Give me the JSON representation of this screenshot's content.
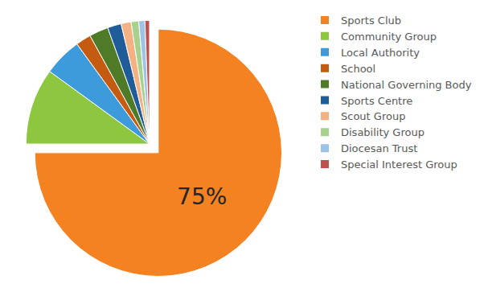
{
  "chart_data": {
    "type": "pie",
    "categories": [
      "Sports Club",
      "Community Group",
      "Local Authority",
      "School",
      "National Governing Body",
      "Sports Centre",
      "Scout Group",
      "Disability Group",
      "Diocesan Trust",
      "Special Interest Group"
    ],
    "values": [
      75,
      10,
      5,
      2,
      2.5,
      1.8,
      1.3,
      1,
      0.8,
      0.6
    ],
    "value_labels": [
      "75%",
      null,
      null,
      null,
      null,
      null,
      null,
      null,
      null,
      null
    ],
    "colors": [
      "#f58220",
      "#8dc63f",
      "#3e9bdb",
      "#c55a11",
      "#4f7a28",
      "#1f5c99",
      "#f4b183",
      "#a9d18e",
      "#9dc3e6",
      "#c0504d"
    ],
    "legend": "right"
  }
}
